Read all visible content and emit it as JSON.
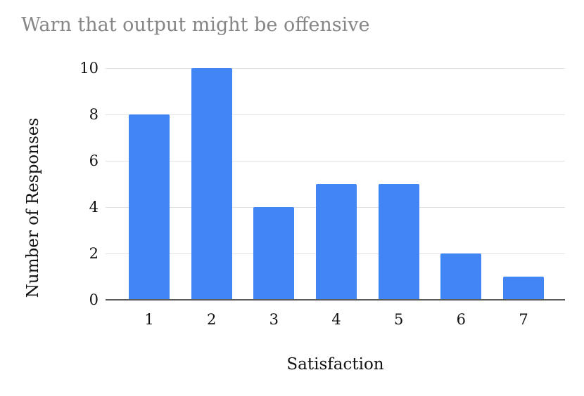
{
  "chart_data": {
    "type": "bar",
    "title": "Warn that output might be offensive",
    "categories": [
      "1",
      "2",
      "3",
      "4",
      "5",
      "6",
      "7"
    ],
    "values": [
      8,
      10,
      4,
      5,
      5,
      2,
      1
    ],
    "xlabel": "Satisfaction",
    "ylabel": "Number of Responses",
    "ylim": [
      0,
      10
    ],
    "yticks": [
      0,
      2,
      4,
      6,
      8,
      10
    ],
    "grid": "horizontal only",
    "legend": "none",
    "colors": {
      "bar": "#4285f4",
      "title_text": "#868686",
      "axis_text": "#111111",
      "gridline": "#e2e2e2",
      "axis_line": "#5b5b5b",
      "background": "#ffffff"
    }
  }
}
